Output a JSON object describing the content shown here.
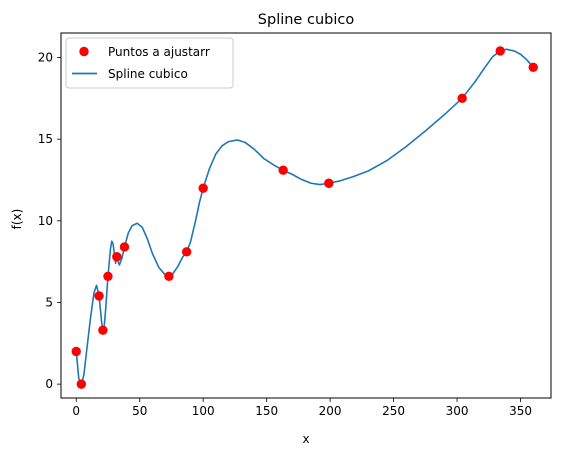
{
  "chart_data": {
    "type": "scatter",
    "title": "Spline cubico",
    "xlabel": "x",
    "ylabel": "f(x)",
    "xlim": [
      -12,
      374
    ],
    "ylim": [
      -0.85,
      21.5
    ],
    "xticks": [
      0,
      50,
      100,
      150,
      200,
      250,
      300,
      350
    ],
    "yticks": [
      0,
      5,
      10,
      15,
      20
    ],
    "xtick_labels": [
      "0",
      "50",
      "100",
      "150",
      "200",
      "250",
      "300",
      "350"
    ],
    "ytick_labels": [
      "0",
      "5",
      "10",
      "15",
      "20"
    ],
    "grid": false,
    "legend_position": "top-left",
    "series": [
      {
        "name": "Puntos a ajustarr",
        "kind": "scatter",
        "color": "#ff0000",
        "x": [
          0,
          4,
          18,
          21,
          25,
          32,
          38,
          73,
          87,
          100,
          163,
          199,
          304,
          334,
          360
        ],
        "y": [
          2.0,
          0.0,
          5.4,
          3.3,
          6.6,
          7.8,
          8.4,
          6.6,
          8.1,
          12.0,
          13.1,
          12.3,
          17.5,
          20.4,
          19.4
        ]
      },
      {
        "name": "Spline cubico",
        "kind": "line",
        "color": "#1f77b4",
        "x": [
          0,
          2,
          4,
          6,
          8,
          11,
          14,
          16,
          18,
          19,
          20,
          21,
          22,
          23,
          25,
          27,
          28,
          29,
          30,
          31,
          32,
          33,
          34,
          36,
          38,
          41,
          44,
          48,
          52,
          56,
          60,
          65,
          70,
          73,
          76,
          80,
          84,
          87,
          90,
          94,
          97,
          100,
          105,
          110,
          115,
          120,
          127,
          133,
          140,
          148,
          156,
          163,
          170,
          177,
          185,
          192,
          199,
          208,
          218,
          230,
          245,
          260,
          275,
          290,
          304,
          314,
          322,
          328,
          334,
          339,
          345,
          350,
          355,
          360
        ],
        "y": [
          2.0,
          0.35,
          0.0,
          0.55,
          1.9,
          3.9,
          5.6,
          6.05,
          5.4,
          4.6,
          3.8,
          3.3,
          3.5,
          4.4,
          6.6,
          8.3,
          8.75,
          8.6,
          8.0,
          7.4,
          7.8,
          7.5,
          7.3,
          7.7,
          8.4,
          9.25,
          9.7,
          9.85,
          9.6,
          8.9,
          8.0,
          7.15,
          6.7,
          6.6,
          6.75,
          7.2,
          7.8,
          8.1,
          8.7,
          10.0,
          11.1,
          12.0,
          13.2,
          14.1,
          14.6,
          14.85,
          14.95,
          14.8,
          14.4,
          13.8,
          13.4,
          13.1,
          12.85,
          12.55,
          12.3,
          12.22,
          12.3,
          12.45,
          12.7,
          13.05,
          13.7,
          14.55,
          15.5,
          16.5,
          17.5,
          18.5,
          19.4,
          20.05,
          20.4,
          20.5,
          20.4,
          20.2,
          19.85,
          19.4
        ]
      }
    ]
  }
}
